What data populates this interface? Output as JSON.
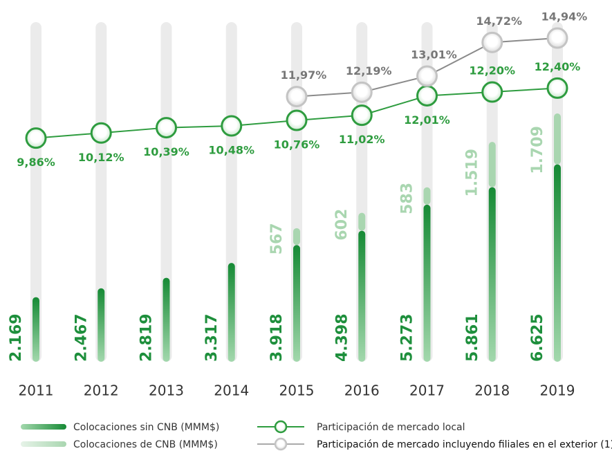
{
  "chart_data": {
    "type": "bar",
    "stacked": true,
    "categories": [
      "2011",
      "2012",
      "2013",
      "2014",
      "2015",
      "2016",
      "2017",
      "2018",
      "2019"
    ],
    "series": [
      {
        "name": "Colocaciones sin CNB (MMM$)",
        "color": "#1e8f3c",
        "values": [
          2169,
          2467,
          2819,
          3317,
          3918,
          4398,
          5273,
          5861,
          6625
        ],
        "value_labels": [
          "2.169",
          "2.467",
          "2.819",
          "3.317",
          "3.918",
          "4.398",
          "5.273",
          "5.861",
          "6.625"
        ]
      },
      {
        "name": "Colocaciones de CNB (MMM$)",
        "color": "#a9d6b0",
        "values": [
          null,
          null,
          null,
          null,
          567,
          602,
          583,
          1519,
          1709
        ],
        "value_labels": [
          null,
          null,
          null,
          null,
          "567",
          "602",
          "583",
          "1.519",
          "1.709"
        ]
      },
      {
        "name": "Participación de mercado local",
        "type": "line",
        "axis": "y2",
        "color": "#2e9c3f",
        "values": [
          9.86,
          10.12,
          10.39,
          10.48,
          10.76,
          11.02,
          12.01,
          12.2,
          12.4
        ],
        "value_labels": [
          "9,86%",
          "10,12%",
          "10,39%",
          "10,48%",
          "10,76%",
          "11,02%",
          "12,01%",
          "12,20%",
          "12,40%"
        ]
      },
      {
        "name": "Participación de mercado incluyendo filiales en el exterior (1)",
        "type": "line",
        "axis": "y2",
        "color": "#8a8a8a",
        "values": [
          null,
          null,
          null,
          null,
          11.97,
          12.19,
          13.01,
          14.72,
          14.94
        ],
        "value_labels": [
          null,
          null,
          null,
          null,
          "11,97%",
          "12,19%",
          "13,01%",
          "14,72%",
          "14,94%"
        ]
      }
    ],
    "ylim": [
      0,
      11400
    ],
    "y2lim": [
      -1.5,
      15.75
    ]
  }
}
